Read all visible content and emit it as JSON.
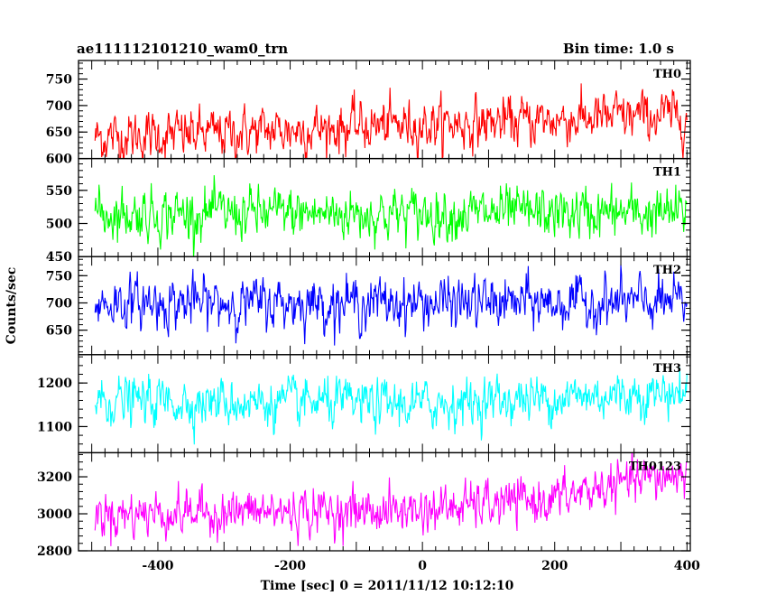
{
  "header": {
    "left_title": "ae111112101210_wam0_trn",
    "right_title": "Bin time: 1.0 s"
  },
  "chart_data": {
    "type": "line",
    "ylabel": "Counts/sec",
    "xlabel": "Time [sec] 0 = 2011/11/12 10:12:10",
    "xlim": [
      -520,
      405
    ],
    "xticks": [
      -400,
      -200,
      0,
      200,
      400
    ],
    "x_start": -495,
    "x_end": 400,
    "bin_time": 1.0,
    "panels": [
      {
        "name": "TH0",
        "color": "#ff0000",
        "ylim": [
          600,
          785
        ],
        "yticks": [
          600,
          650,
          700,
          750
        ],
        "trend_x": [
          -495,
          -300,
          -100,
          100,
          300,
          400
        ],
        "trend_y": [
          640,
          648,
          660,
          668,
          678,
          682
        ],
        "noise": 30
      },
      {
        "name": "TH1",
        "color": "#00ff00",
        "ylim": [
          450,
          598
        ],
        "yticks": [
          450,
          500,
          550
        ],
        "trend_x": [
          -495,
          400
        ],
        "trend_y": [
          515,
          515
        ],
        "noise": 25
      },
      {
        "name": "TH2",
        "color": "#0000ff",
        "ylim": [
          605,
          785
        ],
        "yticks": [
          650,
          700,
          750
        ],
        "trend_x": [
          -495,
          400
        ],
        "trend_y": [
          700,
          700
        ],
        "noise": 30
      },
      {
        "name": "TH3",
        "color": "#00ffff",
        "ylim": [
          1040,
          1265
        ],
        "yticks": [
          1100,
          1200
        ],
        "trend_x": [
          -495,
          0,
          100,
          400
        ],
        "trend_y": [
          1160,
          1150,
          1160,
          1180
        ],
        "noise": 35
      },
      {
        "name": "TH0123",
        "color": "#ff00ff",
        "ylim": [
          2800,
          3330
        ],
        "yticks": [
          2800,
          3000,
          3200
        ],
        "trend_x": [
          -495,
          0,
          200,
          300,
          400
        ],
        "trend_y": [
          3000,
          3020,
          3080,
          3160,
          3220
        ],
        "noise": 80
      }
    ]
  }
}
